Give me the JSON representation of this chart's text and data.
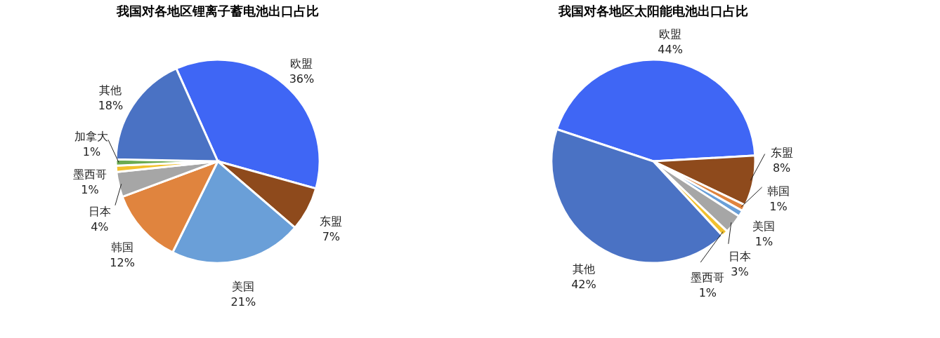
{
  "chart_data": [
    {
      "type": "pie",
      "title": "我国对各地区锂离子蓄电池出口占比",
      "categories": [
        "欧盟",
        "东盟",
        "美国",
        "韩国",
        "日本",
        "墨西哥",
        "加拿大",
        "其他"
      ],
      "values": [
        36,
        7,
        21,
        12,
        4,
        1,
        1,
        18
      ],
      "value_labels": [
        "36%",
        "7%",
        "21%",
        "12%",
        "4%",
        "1%",
        "1%",
        "18%"
      ],
      "colors": [
        "#3f66f5",
        "#8e4a1c",
        "#6a9fd8",
        "#e0843e",
        "#a6a6a6",
        "#f2c12e",
        "#6aaa50",
        "#4a72c4"
      ]
    },
    {
      "type": "pie",
      "title": "我国对各地区太阳能电池出口占比",
      "categories": [
        "欧盟",
        "东盟",
        "韩国",
        "美国",
        "日本",
        "墨西哥",
        "其他"
      ],
      "values": [
        44,
        8,
        1,
        1,
        3,
        1,
        42
      ],
      "value_labels": [
        "44%",
        "8%",
        "1%",
        "1%",
        "3%",
        "1%",
        "42%"
      ],
      "colors": [
        "#3f66f5",
        "#8e4a1c",
        "#e0843e",
        "#6a9fd8",
        "#a6a6a6",
        "#f2c12e",
        "#4a72c4"
      ]
    }
  ]
}
